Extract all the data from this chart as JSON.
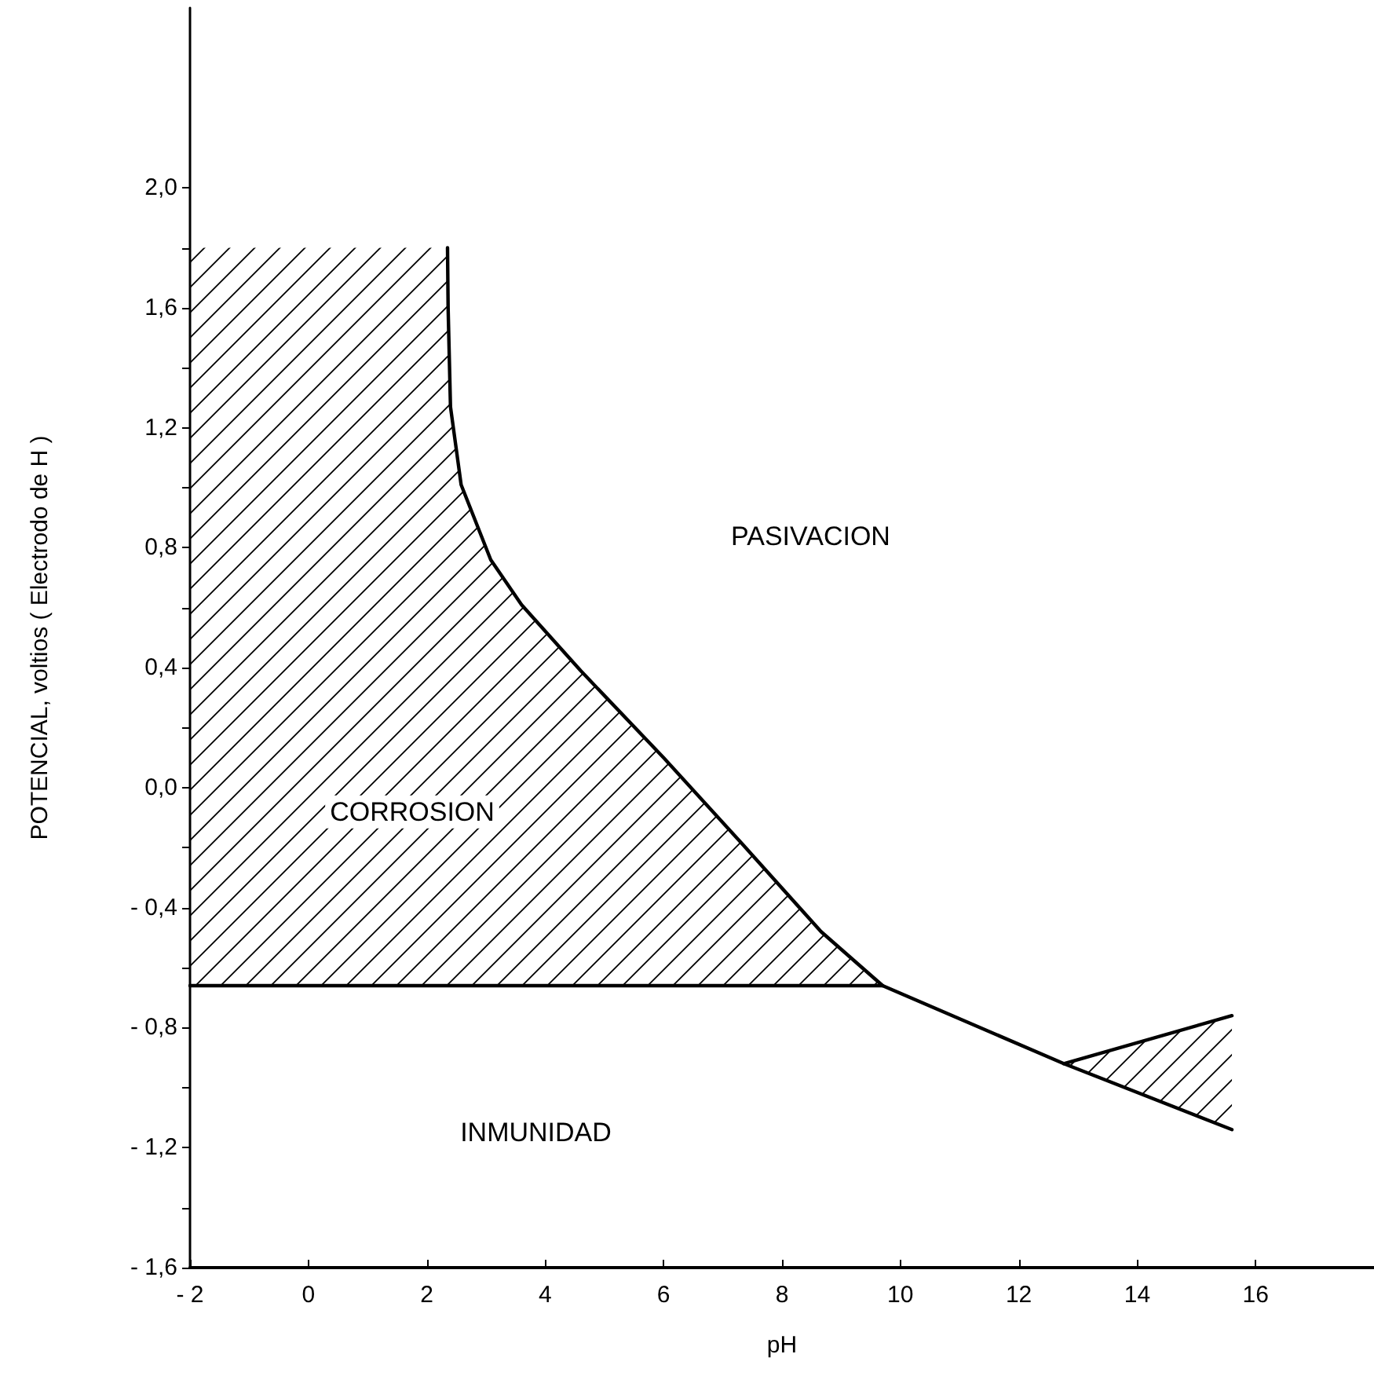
{
  "chart_data": {
    "type": "line",
    "xlabel": "pH",
    "ylabel": "POTENCIAL, voltios ( Electrodo de H )",
    "xlim": [
      -2,
      18
    ],
    "xticks": [
      {
        "value": -2,
        "label": "- 2"
      },
      0,
      2,
      4,
      6,
      8,
      10,
      12,
      14,
      16
    ],
    "ylim": [
      -1.6,
      2.6
    ],
    "yticks": [
      {
        "value": -1.6,
        "label": "- 1,6"
      },
      {
        "value": -1.4,
        "label": null
      },
      {
        "value": -1.2,
        "label": "- 1,2"
      },
      {
        "value": -1.0,
        "label": null
      },
      {
        "value": -0.8,
        "label": "- 0,8"
      },
      {
        "value": -0.6,
        "label": null
      },
      {
        "value": -0.4,
        "label": "- 0,4"
      },
      {
        "value": -0.2,
        "label": null
      },
      {
        "value": 0,
        "label": "0,0"
      },
      {
        "value": 0.2,
        "label": null
      },
      {
        "value": 0.4,
        "label": "0,4"
      },
      {
        "value": 0.6,
        "label": null
      },
      {
        "value": 0.8,
        "label": "0,8"
      },
      {
        "value": 1.0,
        "label": null
      },
      {
        "value": 1.2,
        "label": "1,2"
      },
      {
        "value": 1.4,
        "label": null
      },
      {
        "value": 1.6,
        "label": "1,6"
      },
      {
        "value": 1.8,
        "label": null
      },
      {
        "value": 2.0,
        "label": "2,0"
      }
    ],
    "marker": "none",
    "line_style": "solid",
    "series": [
      {
        "color": "#000000",
        "x": [
          -2,
          2.35,
          2.36,
          2.4,
          2.58,
          3.08,
          3.6,
          4.6,
          6.0,
          7.34,
          8.66,
          9.7
        ],
        "values": [
          null,
          1.8,
          1.6,
          1.27,
          1.01,
          0.76,
          0.61,
          0.39,
          0.1,
          -0.19,
          -0.48,
          -0.66
        ],
        "lower": [
          -0.66,
          -0.66,
          -0.66,
          -0.66,
          -0.66,
          -0.66,
          -0.66,
          -0.66,
          -0.66,
          -0.66,
          -0.66,
          -0.66
        ],
        "upper": [
          1.8,
          1.8,
          1.6,
          1.27,
          1.01,
          0.76,
          0.61,
          0.39,
          0.1,
          -0.19,
          -0.48,
          -0.66
        ]
      },
      {
        "color": "#000000",
        "x": [
          -2,
          9.7,
          12.76,
          15.6
        ],
        "values": [
          -0.66,
          -0.66,
          -0.92,
          -1.14
        ]
      },
      {
        "color": "#000000",
        "x": [
          12.76,
          15.6
        ],
        "values": [
          -0.92,
          -0.76
        ],
        "lower": [
          -0.92,
          -1.14
        ],
        "upper": [
          -0.92,
          -0.76
        ]
      }
    ],
    "annotations": [
      "CORROSION",
      "PASIVACION",
      "INMUNIDAD"
    ]
  }
}
